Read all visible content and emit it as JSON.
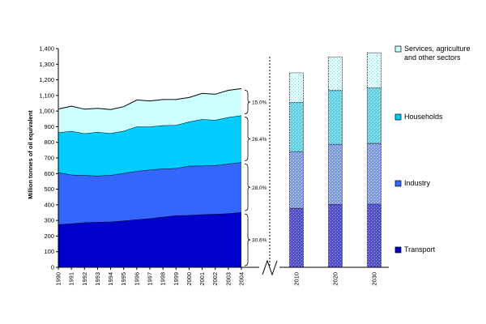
{
  "chart_data": {
    "type": "area",
    "stacked": true,
    "ylabel": "Million tonnes of oil equivalent",
    "ylim": [
      0,
      1400
    ],
    "yticks": [
      0,
      100,
      200,
      300,
      400,
      500,
      600,
      700,
      800,
      900,
      1000,
      1100,
      1200,
      1300,
      1400
    ],
    "ytick_labels": [
      "0",
      "100",
      "200",
      "300",
      "400",
      "500",
      "600",
      "700",
      "800",
      "900",
      "1,000",
      "1,100",
      "1,200",
      "1,300",
      "1,400"
    ],
    "x": [
      "1990",
      "1991",
      "1992",
      "1993",
      "1994",
      "1995",
      "1996",
      "1997",
      "1998",
      "1999",
      "2000",
      "2001",
      "2002",
      "2003",
      "2004"
    ],
    "series": [
      {
        "name": "Transport",
        "color": "#0000cc",
        "values": [
          275,
          280,
          287,
          290,
          292,
          298,
          306,
          313,
          323,
          332,
          334,
          338,
          341,
          345,
          352
        ]
      },
      {
        "name": "Industry",
        "color": "#3366ff",
        "values": [
          332,
          312,
          302,
          296,
          298,
          305,
          310,
          312,
          308,
          302,
          315,
          312,
          312,
          318,
          320
        ]
      },
      {
        "name": "Households",
        "color": "#00ccff",
        "values": [
          256,
          280,
          268,
          280,
          268,
          270,
          285,
          275,
          278,
          276,
          283,
          298,
          290,
          298,
          300
        ]
      },
      {
        "name": "Services, agriculture and other sectors",
        "color": "#ccffff",
        "values": [
          150,
          160,
          155,
          152,
          152,
          155,
          170,
          165,
          165,
          165,
          155,
          165,
          165,
          172,
          172
        ]
      }
    ],
    "share_labels": [
      "30.6%",
      "28.0%",
      "26.4%",
      "15.0%"
    ],
    "projection": {
      "type": "stacked-bar",
      "categories": [
        "2010",
        "2020",
        "2030"
      ],
      "series": [
        {
          "name": "Transport",
          "values": [
            378,
            402,
            405
          ]
        },
        {
          "name": "Industry",
          "values": [
            362,
            385,
            388
          ]
        },
        {
          "name": "Households",
          "values": [
            315,
            345,
            355
          ]
        },
        {
          "name": "Services, agriculture and other sectors",
          "values": [
            190,
            215,
            225
          ]
        }
      ]
    },
    "legend": {
      "position": "right",
      "entries": [
        "Services, agriculture and other sectors",
        "Households",
        "Industry",
        "Transport"
      ]
    },
    "legend_lines": [
      [
        "Services, agriculture",
        "and other sectors"
      ],
      [
        "Households"
      ],
      [
        "Industry"
      ],
      [
        "Transport"
      ]
    ],
    "grid": false
  }
}
